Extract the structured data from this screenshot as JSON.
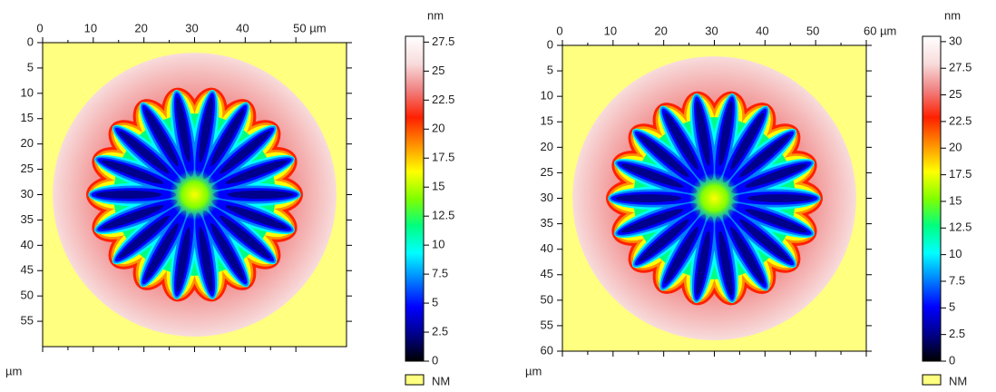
{
  "chart_data": [
    {
      "type": "heatmap",
      "x_label": "µm",
      "xlim": [
        0,
        60
      ],
      "ylim": [
        0,
        60
      ],
      "xticks": [
        0,
        10,
        20,
        30,
        40,
        {
          "value": 50,
          "label": "50 µm"
        }
      ],
      "yticks": [
        0,
        5,
        10,
        15,
        20,
        25,
        30,
        35,
        40,
        45,
        50,
        55
      ],
      "colorbar_label": "nm",
      "clim": [
        0,
        28
      ],
      "cticks": [
        0,
        2.5,
        5,
        7.5,
        10,
        12.5,
        15,
        17.5,
        20,
        22.5,
        25,
        27.5
      ],
      "colormap": [
        "#000000",
        "#00008c",
        "#0000ff",
        "#0080ff",
        "#00ffff",
        "#00ff80",
        "#80ff00",
        "#ffff00",
        "#ff9000",
        "#ff2000",
        "#f08080",
        "#f8dcdc",
        "#ffffff"
      ],
      "legend": {
        "name": "NM",
        "color": "#ffff80"
      }
    },
    {
      "type": "heatmap",
      "x_label": "µm",
      "xlim": [
        0,
        60
      ],
      "ylim": [
        0,
        60
      ],
      "xticks": [
        0,
        10,
        20,
        30,
        40,
        50,
        {
          "value": 60,
          "label": "60 µm"
        }
      ],
      "yticks": [
        0,
        5,
        10,
        15,
        20,
        25,
        30,
        35,
        40,
        45,
        50,
        55,
        60
      ],
      "colorbar_label": "nm",
      "clim": [
        0,
        30.5
      ],
      "cticks": [
        0,
        2.5,
        5,
        7.5,
        10,
        12.5,
        15,
        17.5,
        20,
        22.5,
        25,
        27.5,
        30
      ],
      "colormap": [
        "#000000",
        "#00008c",
        "#0000ff",
        "#0080ff",
        "#00ffff",
        "#00ff80",
        "#80ff00",
        "#ffff00",
        "#ff9000",
        "#ff2000",
        "#f08080",
        "#f8dcdc",
        "#ffffff"
      ],
      "legend": {
        "name": "NM",
        "color": "#ffff80"
      }
    }
  ]
}
